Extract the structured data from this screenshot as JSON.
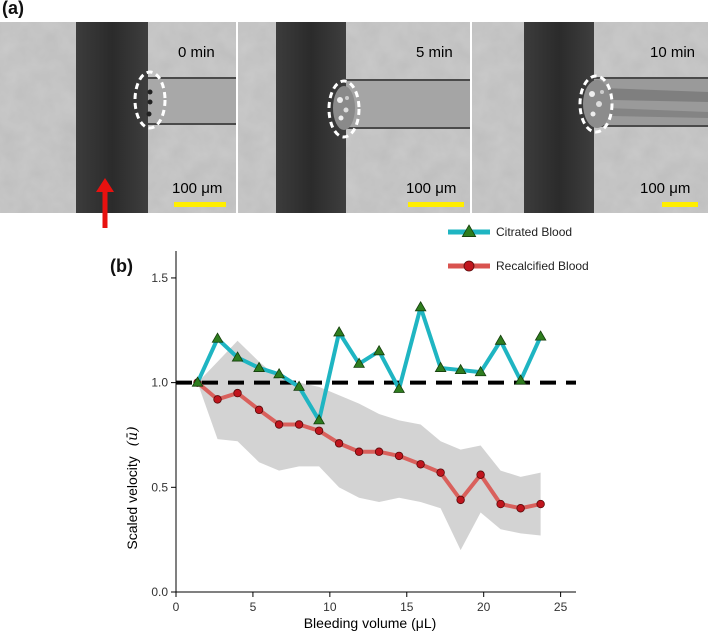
{
  "panel_a": {
    "label": "(a)",
    "frames": [
      {
        "time": "0 min",
        "scale": "100 μm"
      },
      {
        "time": "5 min",
        "scale": "100 μm"
      },
      {
        "time": "10 min",
        "scale": "100 μm"
      }
    ],
    "arrow_icon": "red-up-arrow-icon"
  },
  "panel_b": {
    "label": "(b)"
  },
  "colors": {
    "citrated_line": "#1fb5c2",
    "citrated_marker": "#2e7d1e",
    "recalcified_line": "#d9534f",
    "recalcified_marker": "#c0151d",
    "band": "#d3d3d3",
    "scalebar": "#ffee00",
    "arrow": "#e8110f"
  },
  "chart_data": {
    "type": "line",
    "title": "",
    "xlabel": "Bleeding volume (μL)",
    "ylabel": "Scaled velocity",
    "ylabel_symbol": "(ū)",
    "xlim": [
      0,
      26
    ],
    "ylim": [
      0,
      1.6
    ],
    "xticks": [
      0,
      5,
      10,
      15,
      20,
      25
    ],
    "yticks": [
      0.0,
      0.5,
      1.0,
      1.5
    ],
    "xtick_labels": [
      "0",
      "5",
      "10",
      "15",
      "20",
      "25"
    ],
    "ytick_labels": [
      "0.0",
      "0.5",
      "1.0",
      "1.5"
    ],
    "reference_line": {
      "y": 1.0,
      "x_start": 0,
      "x_end": 26,
      "style": "dashed"
    },
    "legend_position": "top-right",
    "series": [
      {
        "name": "Citrated Blood",
        "marker": "triangle",
        "x": [
          1.4,
          2.7,
          4.0,
          5.4,
          6.7,
          8.0,
          9.3,
          10.6,
          11.9,
          13.2,
          14.5,
          15.9,
          17.2,
          18.5,
          19.8,
          21.1,
          22.4,
          23.7
        ],
        "values": [
          1.0,
          1.21,
          1.12,
          1.07,
          1.04,
          0.98,
          0.82,
          1.24,
          1.09,
          1.15,
          0.97,
          1.36,
          1.07,
          1.06,
          1.05,
          1.2,
          1.01,
          1.22
        ]
      },
      {
        "name": "Recalcified Blood",
        "marker": "circle",
        "x": [
          1.4,
          2.7,
          4.0,
          5.4,
          6.7,
          8.0,
          9.3,
          10.6,
          11.9,
          13.2,
          14.5,
          15.9,
          17.2,
          18.5,
          19.8,
          21.1,
          22.4,
          23.7
        ],
        "values": [
          1.0,
          0.92,
          0.95,
          0.87,
          0.8,
          0.8,
          0.77,
          0.71,
          0.67,
          0.67,
          0.65,
          0.61,
          0.57,
          0.44,
          0.56,
          0.42,
          0.4,
          0.42
        ],
        "band_upper": [
          1.0,
          1.1,
          1.2,
          1.1,
          1.02,
          1.0,
          0.98,
          0.94,
          0.9,
          0.85,
          0.82,
          0.8,
          0.72,
          0.68,
          0.7,
          0.58,
          0.55,
          0.57
        ],
        "band_lower": [
          1.0,
          0.73,
          0.72,
          0.62,
          0.58,
          0.6,
          0.6,
          0.5,
          0.45,
          0.43,
          0.45,
          0.43,
          0.4,
          0.2,
          0.38,
          0.3,
          0.28,
          0.27
        ]
      }
    ]
  }
}
